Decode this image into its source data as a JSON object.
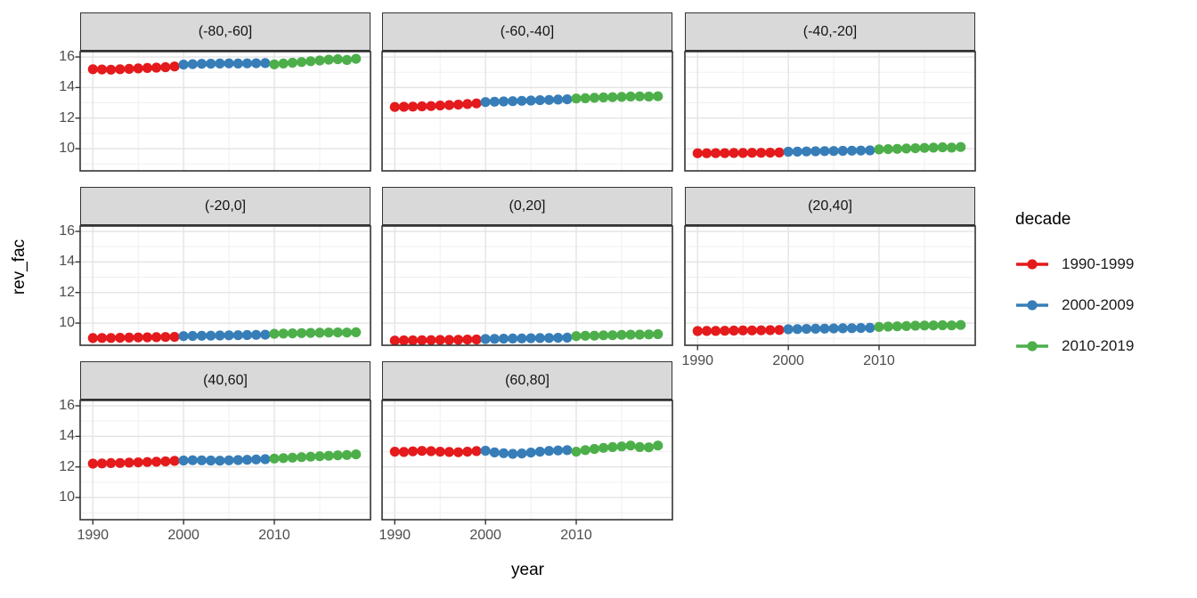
{
  "chart_data": {
    "type": "scatter",
    "title": "",
    "xlabel": "year",
    "ylabel": "rev_fac",
    "grid": true,
    "x": [
      1990,
      1991,
      1992,
      1993,
      1994,
      1995,
      1996,
      1997,
      1998,
      1999,
      2000,
      2001,
      2002,
      2003,
      2004,
      2005,
      2006,
      2007,
      2008,
      2009,
      2010,
      2011,
      2012,
      2013,
      2014,
      2015,
      2016,
      2017,
      2018,
      2019
    ],
    "x_ticks": [
      1990,
      2000,
      2010
    ],
    "x_minor": [
      1995,
      2005,
      2015
    ],
    "y_ticks": [
      16,
      14,
      12,
      10
    ],
    "y_minor": [
      9,
      11,
      13,
      15
    ],
    "x_range": [
      1988.6,
      2020.6
    ],
    "y_range": [
      8.55,
      16.35
    ],
    "legend": {
      "title": "decade",
      "position": "right",
      "entries": [
        {
          "label": "1990-1999",
          "color": "#e41a1c"
        },
        {
          "label": "2000-2009",
          "color": "#377eb8"
        },
        {
          "label": "2010-2019",
          "color": "#4daf4a"
        }
      ]
    },
    "facets": [
      {
        "label": "(-80,-60]",
        "values": [
          15.2,
          15.18,
          15.17,
          15.2,
          15.22,
          15.25,
          15.28,
          15.3,
          15.33,
          15.38,
          15.5,
          15.53,
          15.55,
          15.56,
          15.57,
          15.58,
          15.57,
          15.58,
          15.59,
          15.6,
          15.52,
          15.57,
          15.62,
          15.67,
          15.72,
          15.77,
          15.82,
          15.85,
          15.8,
          15.88
        ]
      },
      {
        "label": "(-60,-40]",
        "values": [
          12.73,
          12.74,
          12.75,
          12.77,
          12.79,
          12.82,
          12.85,
          12.88,
          12.92,
          12.96,
          13.05,
          13.07,
          13.09,
          13.11,
          13.13,
          13.15,
          13.17,
          13.19,
          13.21,
          13.23,
          13.28,
          13.3,
          13.33,
          13.35,
          13.37,
          13.39,
          13.41,
          13.42,
          13.41,
          13.43
        ]
      },
      {
        "label": "(-40,-20]",
        "values": [
          9.7,
          9.7,
          9.71,
          9.71,
          9.72,
          9.72,
          9.73,
          9.73,
          9.74,
          9.75,
          9.8,
          9.81,
          9.82,
          9.83,
          9.84,
          9.85,
          9.86,
          9.87,
          9.88,
          9.89,
          9.95,
          9.97,
          9.99,
          10.01,
          10.03,
          10.05,
          10.07,
          10.09,
          10.07,
          10.11
        ]
      },
      {
        "label": "(-20,0]",
        "values": [
          9.02,
          9.03,
          9.03,
          9.04,
          9.05,
          9.06,
          9.07,
          9.08,
          9.09,
          9.1,
          9.15,
          9.16,
          9.17,
          9.18,
          9.19,
          9.2,
          9.21,
          9.22,
          9.23,
          9.24,
          9.3,
          9.32,
          9.33,
          9.35,
          9.36,
          9.37,
          9.38,
          9.39,
          9.38,
          9.4
        ]
      },
      {
        "label": "(0,20]",
        "values": [
          8.86,
          8.87,
          8.87,
          8.88,
          8.89,
          8.9,
          8.9,
          8.91,
          8.92,
          8.93,
          8.96,
          8.97,
          8.98,
          8.99,
          9.0,
          9.01,
          9.02,
          9.03,
          9.04,
          9.05,
          9.15,
          9.17,
          9.18,
          9.2,
          9.21,
          9.23,
          9.24,
          9.25,
          9.26,
          9.28
        ]
      },
      {
        "label": "(20,40]",
        "values": [
          9.48,
          9.49,
          9.49,
          9.5,
          9.51,
          9.52,
          9.52,
          9.53,
          9.54,
          9.55,
          9.6,
          9.61,
          9.62,
          9.63,
          9.64,
          9.65,
          9.66,
          9.67,
          9.68,
          9.69,
          9.75,
          9.77,
          9.79,
          9.81,
          9.83,
          9.84,
          9.85,
          9.86,
          9.85,
          9.88
        ]
      },
      {
        "label": "(40,60]",
        "values": [
          12.22,
          12.23,
          12.25,
          12.26,
          12.28,
          12.3,
          12.32,
          12.34,
          12.36,
          12.4,
          12.42,
          12.44,
          12.43,
          12.42,
          12.41,
          12.43,
          12.45,
          12.47,
          12.49,
          12.51,
          12.55,
          12.58,
          12.61,
          12.64,
          12.67,
          12.7,
          12.73,
          12.76,
          12.78,
          12.82
        ]
      },
      {
        "label": "(60,80]",
        "values": [
          13.0,
          12.98,
          13.02,
          13.05,
          13.03,
          13.0,
          12.98,
          12.96,
          13.0,
          13.04,
          13.06,
          12.95,
          12.9,
          12.86,
          12.88,
          12.94,
          13.0,
          13.05,
          13.08,
          13.1,
          13.0,
          13.1,
          13.18,
          13.25,
          13.3,
          13.34,
          13.4,
          13.3,
          13.28,
          13.4
        ]
      }
    ]
  }
}
